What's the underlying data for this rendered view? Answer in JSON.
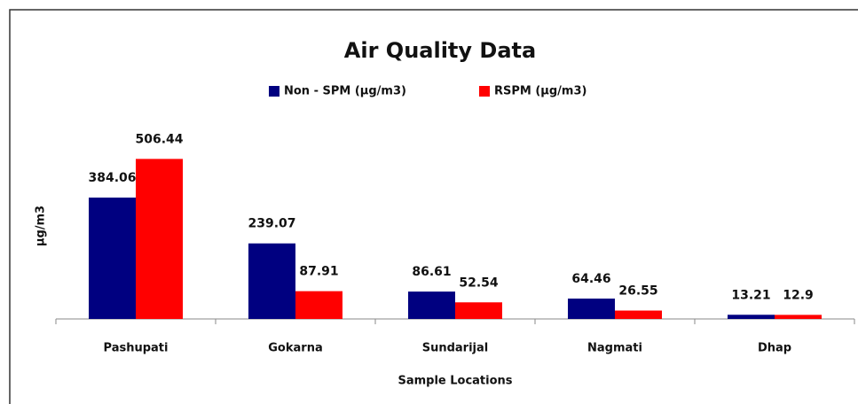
{
  "chart_data": {
    "type": "bar",
    "title": "Air Quality Data",
    "categories": [
      "Pashupati",
      "Gokarna",
      "Sundarijal",
      "Nagmati",
      "Dhap"
    ],
    "series": [
      {
        "name": "Non - SPM  (µg/m3)",
        "color": "#000080",
        "values": [
          384.06,
          239.07,
          86.61,
          64.46,
          13.21
        ]
      },
      {
        "name": "RSPM  (µg/m3)",
        "color": "#ff0000",
        "values": [
          506.44,
          87.91,
          52.54,
          26.55,
          12.9
        ]
      }
    ],
    "ylim": [
      0,
      600
    ],
    "x_label": "Sample Locations",
    "y_label": "µg/m3",
    "legend": "top"
  }
}
